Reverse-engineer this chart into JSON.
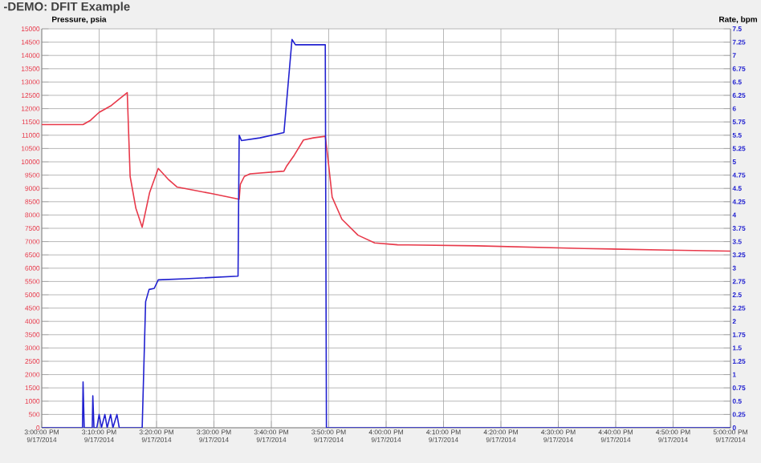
{
  "chart_data": {
    "type": "line",
    "title": "-DEMO: DFIT Example",
    "ylabel": "Pressure, psia",
    "y2label": "Rate, bpm",
    "xlim": [
      "2014-09-17T15:00",
      "2014-09-17T17:00"
    ],
    "xticks": [
      {
        "value": "2014-09-17T15:00",
        "label": "3:00:00 PM 9/17/2014"
      },
      {
        "value": "2014-09-17T15:10",
        "label": "3:10:00 PM 9/17/2014"
      },
      {
        "value": "2014-09-17T15:20",
        "label": "3:20:00 PM 9/17/2014"
      },
      {
        "value": "2014-09-17T15:30",
        "label": "3:30:00 PM 9/17/2014"
      },
      {
        "value": "2014-09-17T15:40",
        "label": "3:40:00 PM 9/17/2014"
      },
      {
        "value": "2014-09-17T15:50",
        "label": "3:50:00 PM 9/17/2014"
      },
      {
        "value": "2014-09-17T16:00",
        "label": "4:00:00 PM 9/17/2014"
      },
      {
        "value": "2014-09-17T16:10",
        "label": "4:10:00 PM 9/17/2014"
      },
      {
        "value": "2014-09-17T16:20",
        "label": "4:20:00 PM 9/17/2014"
      },
      {
        "value": "2014-09-17T16:30",
        "label": "4:30:00 PM 9/17/2014"
      },
      {
        "value": "2014-09-17T16:40",
        "label": "4:40:00 PM 9/17/2014"
      },
      {
        "value": "2014-09-17T16:50",
        "label": "4:50:00 PM 9/17/2014"
      },
      {
        "value": "2014-09-17T17:00",
        "label": "5:00:00 PM 9/17/2014"
      }
    ],
    "ylim": [
      0,
      15000
    ],
    "yticks": [
      0,
      500,
      1000,
      1500,
      2000,
      2500,
      3000,
      3500,
      4000,
      4500,
      5000,
      5500,
      6000,
      6500,
      7000,
      7500,
      8000,
      8500,
      9000,
      9500,
      10000,
      10500,
      11000,
      11500,
      12000,
      12500,
      13000,
      13500,
      14000,
      14500,
      15000
    ],
    "y2lim": [
      0,
      7.5
    ],
    "y2ticks": [
      0,
      0.25,
      0.5,
      0.75,
      1,
      1.25,
      1.5,
      1.75,
      2,
      2.25,
      2.5,
      2.75,
      3,
      3.25,
      3.5,
      3.75,
      4,
      4.25,
      4.5,
      4.75,
      5,
      5.25,
      5.5,
      5.75,
      6,
      6.25,
      6.5,
      6.75,
      7,
      7.25,
      7.5
    ],
    "grid": true,
    "series": [
      {
        "color": "#e8394a",
        "x": [
          "2014-09-17T15:00:00",
          "2014-09-17T15:07:12",
          "2014-09-17T15:08:30",
          "2014-09-17T15:10:00",
          "2014-09-17T15:12:00",
          "2014-09-17T15:13:30",
          "2014-09-17T15:14:54",
          "2014-09-17T15:15:24",
          "2014-09-17T15:16:24",
          "2014-09-17T15:17:30",
          "2014-09-17T15:18:48",
          "2014-09-17T15:20:18",
          "2014-09-17T15:22:00",
          "2014-09-17T15:23:36",
          "2014-09-17T15:29:30",
          "2014-09-17T15:34:24",
          "2014-09-17T15:34:36",
          "2014-09-17T15:35:18",
          "2014-09-17T15:36:18",
          "2014-09-17T15:42:12",
          "2014-09-17T15:42:42",
          "2014-09-17T15:44:00",
          "2014-09-17T15:45:36",
          "2014-09-17T15:47:18",
          "2014-09-17T15:49:24",
          "2014-09-17T15:49:54",
          "2014-09-17T15:50:36",
          "2014-09-17T15:52:18",
          "2014-09-17T15:55:06",
          "2014-09-17T15:58:00",
          "2014-09-17T16:02:00",
          "2014-09-17T16:15:48",
          "2014-09-17T16:34:30",
          "2014-09-17T16:49:24",
          "2014-09-17T17:00:00"
        ],
        "values": [
          11400,
          11400,
          11560,
          11860,
          12100,
          12360,
          12600,
          9450,
          8250,
          7540,
          8850,
          9750,
          9350,
          9050,
          8810,
          8590,
          9150,
          9450,
          9550,
          9650,
          9850,
          10250,
          10820,
          10900,
          10960,
          10050,
          8670,
          7840,
          7240,
          6950,
          6880,
          6840,
          6740,
          6680,
          6640
        ]
      },
      {
        "color": "#2020d0",
        "axis": "y2",
        "x": [
          "2014-09-17T15:00:00",
          "2014-09-17T15:07:06",
          "2014-09-17T15:07:12",
          "2014-09-17T15:07:24",
          "2014-09-17T15:08:48",
          "2014-09-17T15:08:54",
          "2014-09-17T15:09:06",
          "2014-09-17T15:09:36",
          "2014-09-17T15:10:00",
          "2014-09-17T15:10:24",
          "2014-09-17T15:11:00",
          "2014-09-17T15:11:24",
          "2014-09-17T15:12:00",
          "2014-09-17T15:12:24",
          "2014-09-17T15:13:06",
          "2014-09-17T15:13:30",
          "2014-09-17T15:17:30",
          "2014-09-17T15:18:06",
          "2014-09-17T15:18:42",
          "2014-09-17T15:19:36",
          "2014-09-17T15:20:18",
          "2014-09-17T15:25:00",
          "2014-09-17T15:34:12",
          "2014-09-17T15:34:24",
          "2014-09-17T15:34:48",
          "2014-09-17T15:38:00",
          "2014-09-17T15:42:12",
          "2014-09-17T15:43:36",
          "2014-09-17T15:44:12",
          "2014-09-17T15:49:24",
          "2014-09-17T15:49:36",
          "2014-09-17T17:00:00"
        ],
        "values": [
          0,
          0,
          0.86,
          0,
          0,
          0.6,
          0,
          0,
          0.25,
          0,
          0.25,
          0,
          0.25,
          0,
          0.25,
          0,
          0,
          2.37,
          2.6,
          2.62,
          2.78,
          2.8,
          2.85,
          5.5,
          5.4,
          5.45,
          5.55,
          7.3,
          7.2,
          7.2,
          0,
          0
        ]
      }
    ]
  }
}
